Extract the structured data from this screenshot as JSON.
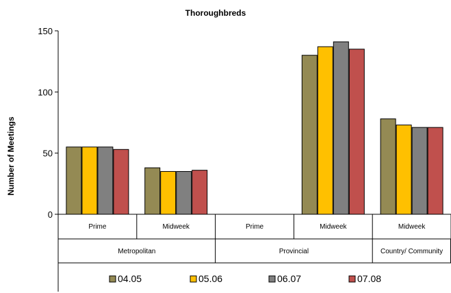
{
  "chart_data": {
    "type": "bar",
    "title": "Thoroughbreds",
    "xlabel": "",
    "ylabel": "Number of Meetings",
    "ylim": [
      0,
      150
    ],
    "yticks": [
      0,
      50,
      100,
      150
    ],
    "categories": [
      "Prime",
      "Midweek",
      "Prime",
      "Midweek",
      "Midweek"
    ],
    "groups": [
      {
        "label": "Metropolitan",
        "span": 2
      },
      {
        "label": "Provincial",
        "span": 2
      },
      {
        "label": "Country/ Community",
        "span": 1
      }
    ],
    "series": [
      {
        "name": "04.05",
        "color": "#948a54",
        "values": [
          55,
          38,
          0,
          130,
          78
        ]
      },
      {
        "name": "05.06",
        "color": "#ffc000",
        "values": [
          55,
          35,
          0,
          137,
          73
        ]
      },
      {
        "name": "06.07",
        "color": "#808080",
        "values": [
          55,
          35,
          0,
          141,
          71
        ]
      },
      {
        "name": "07.08",
        "color": "#c0504d",
        "values": [
          53,
          36,
          0,
          135,
          71
        ]
      }
    ],
    "grid": false,
    "legend_position": "bottom"
  }
}
